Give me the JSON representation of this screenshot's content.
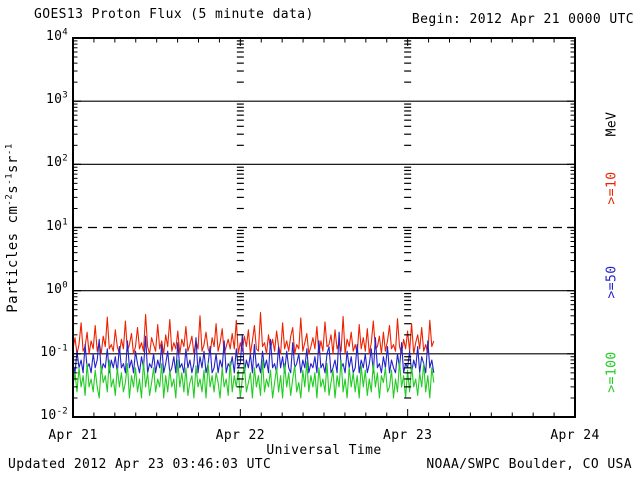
{
  "window": {
    "bg": "#ffffff",
    "text_color": "#000000",
    "frame_color": "#000000"
  },
  "header": {
    "title": "GOES13 Proton Flux (5 minute data)",
    "begin_label": "Begin: 2012 Apr 21 0000 UTC"
  },
  "footer": {
    "updated": "Updated 2012 Apr 23 03:46:03 UTC",
    "source": "NOAA/SWPC Boulder, CO USA"
  },
  "y_axis_title_parts": {
    "t1": "Particles cm",
    "e1": "-2",
    "t2": "s",
    "e2": "-1",
    "t3": "sr",
    "e3": "-1"
  },
  "legend": {
    "unit": "MeV",
    "entries": [
      {
        "label": ">=10",
        "color": "#ee2200"
      },
      {
        "label": ">=50",
        "color": "#2222cc"
      },
      {
        "label": ">=100",
        "color": "#22cc22"
      }
    ]
  },
  "chart_data": {
    "type": "line",
    "title": "GOES13 Proton Flux (5 minute data)",
    "xlabel": "Universal Time",
    "ylabel": "Particles cm^-2 s^-1 sr^-1",
    "yscale": "log",
    "ylim": [
      0.01,
      10000
    ],
    "y_decade_exponents": [
      "4",
      "3",
      "2",
      "1",
      "0",
      "-1",
      "-2"
    ],
    "x_axis_range_hours": [
      0,
      72
    ],
    "x_tick_hours": [
      0,
      24,
      48,
      72
    ],
    "x_tick_labels": [
      "Apr 21",
      "Apr 22",
      "Apr 23",
      "Apr 24"
    ],
    "x_minor_step_hours": 3,
    "gridlines_solid": [
      1000,
      100,
      1,
      0.1
    ],
    "gridlines_dashed": [
      10
    ],
    "day_marker_hours": [
      24,
      48
    ],
    "data_start_hour": 0,
    "data_end_hour": 51.75,
    "series": [
      {
        "name": ">=10 MeV",
        "color": "#ee2200",
        "values": [
          0.12,
          0.18,
          0.1,
          0.14,
          0.31,
          0.11,
          0.13,
          0.22,
          0.1,
          0.16,
          0.12,
          0.28,
          0.11,
          0.15,
          0.1,
          0.19,
          0.13,
          0.38,
          0.12,
          0.14,
          0.11,
          0.24,
          0.13,
          0.1,
          0.17,
          0.12,
          0.33,
          0.11,
          0.14,
          0.21,
          0.1,
          0.13,
          0.26,
          0.12,
          0.15,
          0.11,
          0.42,
          0.13,
          0.1,
          0.18,
          0.14,
          0.11,
          0.29,
          0.12,
          0.16,
          0.1,
          0.2,
          0.13,
          0.35,
          0.11,
          0.15,
          0.12,
          0.23,
          0.1,
          0.17,
          0.13,
          0.27,
          0.11,
          0.14,
          0.19,
          0.1,
          0.16,
          0.12,
          0.4,
          0.11,
          0.14,
          0.22,
          0.12,
          0.1,
          0.18,
          0.13,
          0.3,
          0.11,
          0.15,
          0.25,
          0.1,
          0.13,
          0.17,
          0.12,
          0.21,
          0.12,
          0.34,
          0.1,
          0.15,
          0.11,
          0.19,
          0.13,
          0.24,
          0.1,
          0.16,
          0.28,
          0.12,
          0.11,
          0.45,
          0.13,
          0.15,
          0.1,
          0.2,
          0.12,
          0.17,
          0.11,
          0.23,
          0.13,
          0.1,
          0.31,
          0.12,
          0.16,
          0.11,
          0.19,
          0.26,
          0.1,
          0.14,
          0.12,
          0.37,
          0.11,
          0.15,
          0.21,
          0.1,
          0.13,
          0.18,
          0.12,
          0.27,
          0.1,
          0.16,
          0.11,
          0.32,
          0.13,
          0.14,
          0.2,
          0.1,
          0.24,
          0.12,
          0.15,
          0.11,
          0.39,
          0.1,
          0.17,
          0.13,
          0.22,
          0.11,
          0.14,
          0.1,
          0.29,
          0.12,
          0.18,
          0.11,
          0.25,
          0.1,
          0.15,
          0.33,
          0.12,
          0.13,
          0.19,
          0.1,
          0.22,
          0.11,
          0.16,
          0.28,
          0.12,
          0.14,
          0.11,
          0.36,
          0.13,
          0.1,
          0.17,
          0.12,
          0.23,
          0.11,
          0.3,
          0.1,
          0.15,
          0.2,
          0.12,
          0.26,
          0.11,
          0.14,
          0.1,
          0.34,
          0.13,
          0.16
        ]
      },
      {
        "name": ">=50 MeV",
        "color": "#2222cc",
        "values": [
          0.07,
          0.05,
          0.11,
          0.06,
          0.08,
          0.05,
          0.14,
          0.06,
          0.07,
          0.05,
          0.1,
          0.06,
          0.08,
          0.17,
          0.05,
          0.07,
          0.06,
          0.12,
          0.05,
          0.08,
          0.06,
          0.09,
          0.05,
          0.13,
          0.06,
          0.07,
          0.05,
          0.16,
          0.06,
          0.08,
          0.05,
          0.11,
          0.07,
          0.05,
          0.09,
          0.06,
          0.19,
          0.05,
          0.07,
          0.06,
          0.1,
          0.05,
          0.08,
          0.06,
          0.14,
          0.05,
          0.07,
          0.11,
          0.05,
          0.06,
          0.09,
          0.05,
          0.15,
          0.06,
          0.07,
          0.05,
          0.12,
          0.06,
          0.08,
          0.05,
          0.07,
          0.18,
          0.05,
          0.09,
          0.06,
          0.11,
          0.05,
          0.07,
          0.13,
          0.05,
          0.06,
          0.1,
          0.05,
          0.08,
          0.06,
          0.16,
          0.05,
          0.07,
          0.06,
          0.09,
          0.05,
          0.12,
          0.06,
          0.07,
          0.2,
          0.05,
          0.08,
          0.06,
          0.1,
          0.05,
          0.14,
          0.06,
          0.07,
          0.05,
          0.11,
          0.06,
          0.08,
          0.05,
          0.17,
          0.06,
          0.07,
          0.05,
          0.13,
          0.06,
          0.09,
          0.05,
          0.11,
          0.06,
          0.05,
          0.15,
          0.06,
          0.07,
          0.1,
          0.05,
          0.08,
          0.06,
          0.12,
          0.05,
          0.07,
          0.06,
          0.09,
          0.05,
          0.16,
          0.06,
          0.07,
          0.05,
          0.1,
          0.13,
          0.05,
          0.06,
          0.08,
          0.05,
          0.22,
          0.06,
          0.07,
          0.05,
          0.11,
          0.06,
          0.09,
          0.05,
          0.06,
          0.14,
          0.05,
          0.08,
          0.06,
          0.1,
          0.05,
          0.07,
          0.12,
          0.05,
          0.18,
          0.06,
          0.07,
          0.05,
          0.09,
          0.06,
          0.13,
          0.05,
          0.08,
          0.06,
          0.05,
          0.1,
          0.06,
          0.15,
          0.05,
          0.07,
          0.06,
          0.11,
          0.05,
          0.08,
          0.06,
          0.13,
          0.05,
          0.09,
          0.07,
          0.05,
          0.16,
          0.06,
          0.08,
          0.05
        ]
      },
      {
        "name": ">=100 MeV",
        "color": "#22cc22",
        "values": [
          0.032,
          0.05,
          0.025,
          0.06,
          0.03,
          0.045,
          0.022,
          0.07,
          0.03,
          0.04,
          0.025,
          0.055,
          0.03,
          0.02,
          0.065,
          0.035,
          0.045,
          0.025,
          0.08,
          0.03,
          0.04,
          0.022,
          0.06,
          0.03,
          0.05,
          0.025,
          0.035,
          0.07,
          0.02,
          0.045,
          0.03,
          0.06,
          0.025,
          0.04,
          0.02,
          0.075,
          0.03,
          0.05,
          0.022,
          0.035,
          0.06,
          0.025,
          0.04,
          0.03,
          0.07,
          0.02,
          0.045,
          0.025,
          0.055,
          0.03,
          0.04,
          0.02,
          0.08,
          0.03,
          0.05,
          0.025,
          0.06,
          0.022,
          0.035,
          0.045,
          0.02,
          0.065,
          0.03,
          0.04,
          0.025,
          0.055,
          0.02,
          0.07,
          0.03,
          0.045,
          0.025,
          0.05,
          0.035,
          0.02,
          0.06,
          0.03,
          0.04,
          0.022,
          0.075,
          0.025,
          0.045,
          0.03,
          0.055,
          0.02,
          0.04,
          0.07,
          0.025,
          0.035,
          0.05,
          0.02,
          0.06,
          0.03,
          0.045,
          0.022,
          0.08,
          0.025,
          0.04,
          0.03,
          0.055,
          0.02,
          0.035,
          0.06,
          0.025,
          0.045,
          0.02,
          0.07,
          0.03,
          0.05,
          0.022,
          0.04,
          0.065,
          0.025,
          0.035,
          0.02,
          0.055,
          0.03,
          0.075,
          0.025,
          0.045,
          0.03,
          0.05,
          0.02,
          0.06,
          0.03,
          0.04,
          0.025,
          0.07,
          0.022,
          0.035,
          0.055,
          0.02,
          0.045,
          0.03,
          0.08,
          0.025,
          0.04,
          0.02,
          0.06,
          0.03,
          0.05,
          0.025,
          0.045,
          0.02,
          0.065,
          0.03,
          0.055,
          0.022,
          0.04,
          0.025,
          0.07,
          0.03,
          0.05,
          0.02,
          0.045,
          0.035,
          0.06,
          0.025,
          0.03,
          0.055,
          0.02,
          0.04,
          0.025,
          0.075,
          0.03,
          0.045,
          0.02,
          0.055,
          0.025,
          0.065,
          0.03,
          0.04,
          0.022,
          0.05,
          0.03,
          0.07,
          0.025,
          0.045,
          0.02,
          0.06,
          0.035
        ]
      }
    ]
  }
}
